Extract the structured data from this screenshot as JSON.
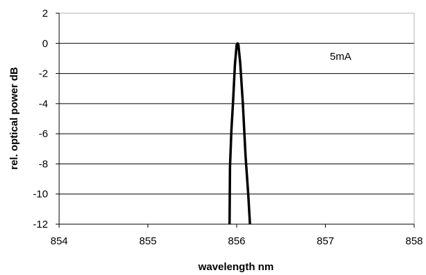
{
  "chart_data": {
    "type": "line",
    "title": "",
    "xlabel": "wavelength nm",
    "ylabel": "rel. optical power dB",
    "xlim": [
      854,
      858
    ],
    "ylim": [
      -12,
      2
    ],
    "x_ticks": [
      854,
      855,
      856,
      857,
      858
    ],
    "y_ticks": [
      2,
      0,
      -2,
      -4,
      -6,
      -8,
      -10,
      -12
    ],
    "grid": "horizontal",
    "legend": "none",
    "annotations": [
      {
        "text": "5mA",
        "x": 857.05,
        "y": -1.1
      }
    ],
    "series": [
      {
        "color": "#000000",
        "x": [
          855.92,
          855.925,
          855.94,
          855.96,
          855.98,
          856.0,
          856.01,
          856.02,
          856.04,
          856.07,
          856.1,
          856.13,
          856.15
        ],
        "y": [
          -12,
          -8.2,
          -5.8,
          -3.8,
          -1.4,
          -0.1,
          0.0,
          -0.1,
          -1.3,
          -4.0,
          -7.5,
          -10.0,
          -12
        ]
      }
    ]
  }
}
